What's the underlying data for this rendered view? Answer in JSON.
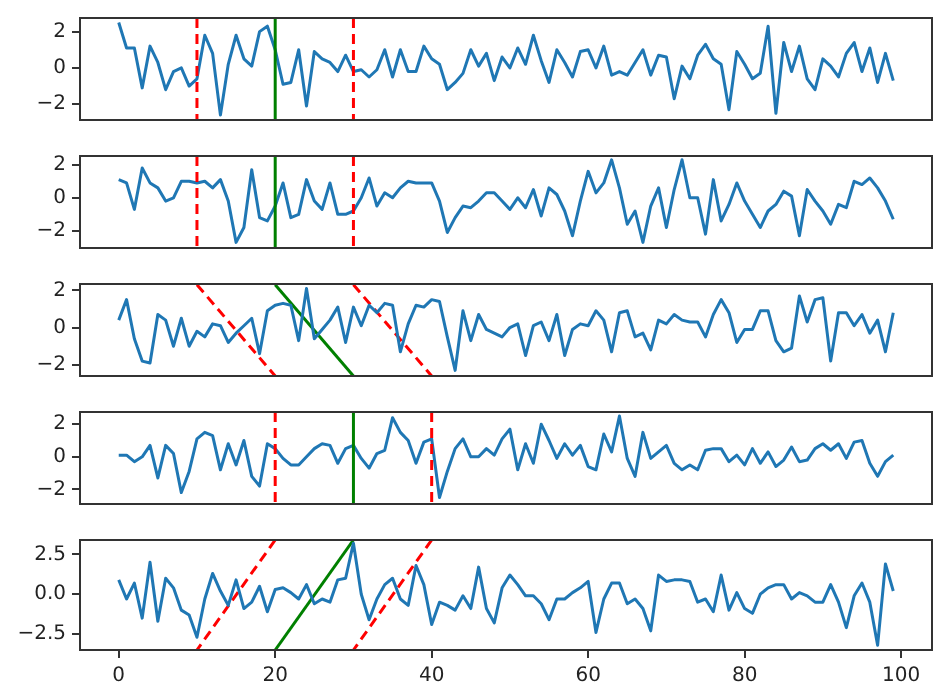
{
  "chart_data": [
    {
      "type": "line",
      "marker": "none",
      "tick_labels": "y",
      "xlim": [
        -4.95,
        103.95
      ],
      "ylim": [
        -2.87,
        2.75
      ],
      "yticks": [
        {
          "value": -2,
          "label": "−2"
        },
        0,
        2
      ],
      "x": [
        0,
        1,
        2,
        3,
        4,
        5,
        6,
        7,
        8,
        9,
        10,
        11,
        12,
        13,
        14,
        15,
        16,
        17,
        18,
        19,
        20,
        21,
        22,
        23,
        24,
        25,
        26,
        27,
        28,
        29,
        30,
        31,
        32,
        33,
        34,
        35,
        36,
        37,
        38,
        39,
        40,
        41,
        42,
        43,
        44,
        45,
        46,
        47,
        48,
        49,
        50,
        51,
        52,
        53,
        54,
        55,
        56,
        57,
        58,
        59,
        60,
        61,
        62,
        63,
        64,
        65,
        66,
        67,
        68,
        69,
        70,
        71,
        72,
        73,
        74,
        75,
        76,
        77,
        78,
        79,
        80,
        81,
        82,
        83,
        84,
        85,
        86,
        87,
        88,
        89,
        90,
        91,
        92,
        93,
        94,
        95,
        96,
        97,
        98,
        99
      ],
      "series": [
        {
          "color": "#1f77b4",
          "values": [
            2.5,
            1.1,
            1.1,
            -1.1,
            1.2,
            0.3,
            -1.2,
            -0.2,
            0,
            -1.0,
            -0.6,
            1.8,
            0.8,
            -2.6,
            0.2,
            1.8,
            0.5,
            0.1,
            2.0,
            2.3,
            1.0,
            -0.9,
            -0.8,
            1.0,
            -2.1,
            0.9,
            0.5,
            0.3,
            -0.2,
            0.7,
            -0.2,
            -0.1,
            -0.5,
            -0.1,
            1.0,
            -0.5,
            1.0,
            -0.2,
            -0.2,
            1.2,
            0.5,
            0.2,
            -1.2,
            -0.8,
            -0.3,
            1.0,
            0.1,
            0.8,
            -0.7,
            0.6,
            0,
            1.1,
            0.2,
            1.8,
            0.4,
            -0.8,
            1.0,
            0.3,
            -0.5,
            0.9,
            1.0,
            0,
            1.2,
            -0.4,
            -0.2,
            -0.4,
            0.3,
            1.0,
            -0.4,
            0.7,
            0.6,
            -1.7,
            0.1,
            -0.6,
            0.7,
            1.3,
            0.5,
            0.2,
            -2.3,
            0.9,
            0.2,
            -0.6,
            -0.3,
            2.3,
            -2.5,
            1.4,
            -0.2,
            1.2,
            -0.6,
            -1.2,
            0.5,
            0.1,
            -0.5,
            0.8,
            1.4,
            -0.2,
            1.1,
            -0.8,
            0.8,
            -0.7
          ]
        }
      ],
      "ref_lines": [
        {
          "axis": "x",
          "value": 10,
          "color": "#ff0000",
          "line_style": "dashed"
        },
        {
          "axis": "x",
          "value": 20,
          "color": "#008000",
          "line_style": "solid"
        },
        {
          "axis": "x",
          "value": 30,
          "color": "#ff0000",
          "line_style": "dashed"
        }
      ]
    },
    {
      "type": "line",
      "marker": "none",
      "tick_labels": "y",
      "xlim": [
        -4.95,
        103.95
      ],
      "ylim": [
        -3.04,
        2.53
      ],
      "yticks": [
        {
          "value": -2,
          "label": "−2"
        },
        0,
        2
      ],
      "x": [
        0,
        1,
        2,
        3,
        4,
        5,
        6,
        7,
        8,
        9,
        10,
        11,
        12,
        13,
        14,
        15,
        16,
        17,
        18,
        19,
        20,
        21,
        22,
        23,
        24,
        25,
        26,
        27,
        28,
        29,
        30,
        31,
        32,
        33,
        34,
        35,
        36,
        37,
        38,
        39,
        40,
        41,
        42,
        43,
        44,
        45,
        46,
        47,
        48,
        49,
        50,
        51,
        52,
        53,
        54,
        55,
        56,
        57,
        58,
        59,
        60,
        61,
        62,
        63,
        64,
        65,
        66,
        67,
        68,
        69,
        70,
        71,
        72,
        73,
        74,
        75,
        76,
        77,
        78,
        79,
        80,
        81,
        82,
        83,
        84,
        85,
        86,
        87,
        88,
        89,
        90,
        91,
        92,
        93,
        94,
        95,
        96,
        97,
        98,
        99
      ],
      "series": [
        {
          "color": "#1f77b4",
          "values": [
            1.1,
            0.9,
            -0.7,
            1.8,
            0.9,
            0.6,
            -0.2,
            0,
            1.0,
            1.0,
            0.9,
            1.0,
            0.6,
            1.1,
            -0.2,
            -2.7,
            -1.8,
            1.7,
            -1.2,
            -1.4,
            -0.5,
            0.9,
            -1.2,
            -1.0,
            1.1,
            -0.2,
            -0.7,
            0.9,
            -1.0,
            -1.0,
            -0.8,
            0,
            1.2,
            -0.5,
            0.3,
            0,
            0.6,
            1.0,
            0.9,
            0.9,
            0.9,
            -0.2,
            -2.1,
            -1.2,
            -0.5,
            -0.6,
            -0.2,
            0.3,
            0.3,
            -0.2,
            -0.7,
            0,
            -0.6,
            0.5,
            -1.1,
            0.6,
            0.2,
            -0.8,
            -2.3,
            -0.2,
            1.6,
            0.3,
            0.9,
            2.3,
            0.6,
            -1.6,
            -0.8,
            -2.7,
            -0.5,
            0.6,
            -1.8,
            0.5,
            2.3,
            0,
            0,
            -2.2,
            1.1,
            -1.4,
            -0.4,
            0.9,
            -0.2,
            -1.0,
            -1.8,
            -0.8,
            -0.4,
            0.4,
            0.1,
            -2.3,
            0.5,
            -0.2,
            -0.8,
            -1.6,
            -0.4,
            -0.6,
            1.0,
            0.8,
            1.2,
            0.6,
            -0.2,
            -1.3
          ]
        }
      ],
      "ref_lines": [
        {
          "axis": "x",
          "value": 10,
          "color": "#ff0000",
          "line_style": "dashed"
        },
        {
          "axis": "x",
          "value": 20,
          "color": "#008000",
          "line_style": "solid"
        },
        {
          "axis": "x",
          "value": 30,
          "color": "#ff0000",
          "line_style": "dashed"
        }
      ]
    },
    {
      "type": "line",
      "marker": "none",
      "tick_labels": "y",
      "xlim": [
        -4.95,
        103.95
      ],
      "ylim": [
        -2.6,
        2.34
      ],
      "yticks": [
        {
          "value": -2,
          "label": "−2"
        },
        0,
        2
      ],
      "x": [
        0,
        1,
        2,
        3,
        4,
        5,
        6,
        7,
        8,
        9,
        10,
        11,
        12,
        13,
        14,
        15,
        16,
        17,
        18,
        19,
        20,
        21,
        22,
        23,
        24,
        25,
        26,
        27,
        28,
        29,
        30,
        31,
        32,
        33,
        34,
        35,
        36,
        37,
        38,
        39,
        40,
        41,
        42,
        43,
        44,
        45,
        46,
        47,
        48,
        49,
        50,
        51,
        52,
        53,
        54,
        55,
        56,
        57,
        58,
        59,
        60,
        61,
        62,
        63,
        64,
        65,
        66,
        67,
        68,
        69,
        70,
        71,
        72,
        73,
        74,
        75,
        76,
        77,
        78,
        79,
        80,
        81,
        82,
        83,
        84,
        85,
        86,
        87,
        88,
        89,
        90,
        91,
        92,
        93,
        94,
        95,
        96,
        97,
        98,
        99
      ],
      "series": [
        {
          "color": "#1f77b4",
          "values": [
            0.4,
            1.5,
            -0.6,
            -1.8,
            -1.9,
            0.7,
            0.4,
            -1.0,
            0.5,
            -1.0,
            -0.2,
            -0.5,
            0.2,
            0.1,
            -0.8,
            -0.3,
            0.1,
            0.5,
            -1.4,
            0.9,
            1.2,
            1.3,
            1.2,
            -0.7,
            2.1,
            -0.6,
            -0.1,
            0.4,
            1.1,
            -0.8,
            1.1,
            0.1,
            1.2,
            0.8,
            1.3,
            1.2,
            -1.3,
            0.2,
            1.2,
            1.1,
            1.5,
            1.4,
            -0.5,
            -2.3,
            0.9,
            -0.7,
            0.7,
            -0.1,
            -0.3,
            -0.5,
            0,
            0.2,
            -1.5,
            0.1,
            0.3,
            -0.7,
            0.7,
            -1.5,
            -0.1,
            0.2,
            0.1,
            0.9,
            0.4,
            -1.3,
            0.8,
            0.9,
            -0.5,
            -0.3,
            -1.2,
            0.4,
            0.2,
            0.7,
            0.4,
            0.3,
            0.3,
            -0.5,
            0.7,
            1.5,
            0.8,
            -0.8,
            -0.1,
            -0.1,
            0.9,
            0.9,
            -0.7,
            -1.3,
            -1.1,
            1.7,
            0.3,
            1.5,
            1.6,
            -1.8,
            0.8,
            0.8,
            0.1,
            0.7,
            -0.3,
            0.4,
            -1.3,
            0.8
          ]
        },
        {
          "type": "line",
          "x": [
            10,
            20
          ],
          "values": [
            2.3,
            -2.6
          ],
          "color": "#ff0000",
          "line_style": "dashed"
        },
        {
          "type": "line",
          "x": [
            20,
            30
          ],
          "values": [
            2.3,
            -2.6
          ],
          "color": "#008000",
          "line_style": "solid"
        },
        {
          "type": "line",
          "x": [
            30,
            40
          ],
          "values": [
            2.3,
            -2.6
          ],
          "color": "#ff0000",
          "line_style": "dashed"
        }
      ]
    },
    {
      "type": "line",
      "marker": "none",
      "tick_labels": "y",
      "xlim": [
        -4.95,
        103.95
      ],
      "ylim": [
        -2.9,
        2.75
      ],
      "yticks": [
        {
          "value": -2,
          "label": "−2"
        },
        0,
        2
      ],
      "x": [
        0,
        1,
        2,
        3,
        4,
        5,
        6,
        7,
        8,
        9,
        10,
        11,
        12,
        13,
        14,
        15,
        16,
        17,
        18,
        19,
        20,
        21,
        22,
        23,
        24,
        25,
        26,
        27,
        28,
        29,
        30,
        31,
        32,
        33,
        34,
        35,
        36,
        37,
        38,
        39,
        40,
        41,
        42,
        43,
        44,
        45,
        46,
        47,
        48,
        49,
        50,
        51,
        52,
        53,
        54,
        55,
        56,
        57,
        58,
        59,
        60,
        61,
        62,
        63,
        64,
        65,
        66,
        67,
        68,
        69,
        70,
        71,
        72,
        73,
        74,
        75,
        76,
        77,
        78,
        79,
        80,
        81,
        82,
        83,
        84,
        85,
        86,
        87,
        88,
        89,
        90,
        91,
        92,
        93,
        94,
        95,
        96,
        97,
        98,
        99
      ],
      "series": [
        {
          "color": "#1f77b4",
          "values": [
            0.1,
            0.1,
            -0.3,
            0,
            0.7,
            -1.3,
            0.7,
            0.2,
            -2.2,
            -0.9,
            1.1,
            1.5,
            1.3,
            -0.8,
            0.8,
            -0.5,
            1.0,
            -1.2,
            -1.8,
            0.8,
            0.5,
            -0.1,
            -0.5,
            -0.5,
            0,
            0.5,
            0.8,
            0.7,
            -0.4,
            0.5,
            0.7,
            -0.1,
            -0.7,
            0.2,
            0.4,
            2.4,
            1.5,
            1.0,
            -0.4,
            0.9,
            1.1,
            -2.5,
            -0.9,
            0.5,
            1.1,
            0,
            0,
            0.5,
            0.1,
            1.1,
            1.7,
            -0.8,
            0.8,
            -0.4,
            2.0,
            1.0,
            -0.1,
            0.8,
            0.1,
            0.7,
            -0.6,
            -0.8,
            1.4,
            0.3,
            2.5,
            -0.1,
            -1.2,
            1.5,
            -0.1,
            0.3,
            0.7,
            -0.4,
            -0.8,
            -0.5,
            -0.8,
            0.4,
            0.5,
            0.5,
            -0.3,
            0.1,
            -0.5,
            0.5,
            -0.4,
            0.3,
            -0.6,
            -0.2,
            0.6,
            -0.3,
            -0.2,
            0.5,
            0.8,
            0.4,
            0.8,
            -0.1,
            0.9,
            1.0,
            -0.4,
            -1.2,
            -0.3,
            0.1
          ]
        }
      ],
      "ref_lines": [
        {
          "axis": "x",
          "value": 20,
          "color": "#ff0000",
          "line_style": "dashed"
        },
        {
          "axis": "x",
          "value": 30,
          "color": "#008000",
          "line_style": "solid"
        },
        {
          "axis": "x",
          "value": 40,
          "color": "#ff0000",
          "line_style": "dashed"
        }
      ]
    },
    {
      "type": "line",
      "marker": "none",
      "xlim": [
        -4.95,
        103.95
      ],
      "ylim": [
        -3.5,
        3.4
      ],
      "xticks": [
        0,
        20,
        40,
        60,
        80,
        100
      ],
      "yticks": [
        {
          "value": -2.5,
          "label": "−2.5"
        },
        {
          "value": 0,
          "label": "0.0"
        },
        2.5
      ],
      "x": [
        0,
        1,
        2,
        3,
        4,
        5,
        6,
        7,
        8,
        9,
        10,
        11,
        12,
        13,
        14,
        15,
        16,
        17,
        18,
        19,
        20,
        21,
        22,
        23,
        24,
        25,
        26,
        27,
        28,
        29,
        30,
        31,
        32,
        33,
        34,
        35,
        36,
        37,
        38,
        39,
        40,
        41,
        42,
        43,
        44,
        45,
        46,
        47,
        48,
        49,
        50,
        51,
        52,
        53,
        54,
        55,
        56,
        57,
        58,
        59,
        60,
        61,
        62,
        63,
        64,
        65,
        66,
        67,
        68,
        69,
        70,
        71,
        72,
        73,
        74,
        75,
        76,
        77,
        78,
        79,
        80,
        81,
        82,
        83,
        84,
        85,
        86,
        87,
        88,
        89,
        90,
        91,
        92,
        93,
        94,
        95,
        96,
        97,
        98,
        99
      ],
      "series": [
        {
          "color": "#1f77b4",
          "values": [
            0.9,
            -0.3,
            0.7,
            -1.5,
            2.0,
            -1.7,
            1.0,
            0.4,
            -1.0,
            -1.3,
            -2.7,
            -0.3,
            1.3,
            0.2,
            -0.7,
            0.9,
            -0.9,
            -0.5,
            0.5,
            -1.1,
            0.3,
            0.4,
            0.1,
            -0.3,
            0.6,
            -0.6,
            -0.3,
            -0.5,
            0.9,
            1.0,
            3.2,
            0,
            -1.6,
            -0.3,
            0.6,
            1.0,
            -0.3,
            -0.7,
            1.8,
            0.6,
            -1.9,
            -0.5,
            -0.7,
            -1.0,
            -0.1,
            -0.9,
            1.7,
            -0.9,
            -1.8,
            0.4,
            1.2,
            0.6,
            -0.1,
            -0.1,
            -0.6,
            -1.6,
            -0.3,
            -0.3,
            0.1,
            0.4,
            0.8,
            -2.4,
            -0.3,
            0.7,
            0.7,
            -0.6,
            -0.3,
            -0.9,
            -2.3,
            1.2,
            0.8,
            0.9,
            0.9,
            0.8,
            -0.5,
            -0.3,
            -1.1,
            1.2,
            -1.0,
            0.1,
            -0.9,
            -1.2,
            0,
            0.4,
            0.6,
            0.6,
            -0.3,
            0.1,
            -0.1,
            -0.5,
            -0.5,
            0.6,
            -0.5,
            -2.1,
            -0.1,
            0.7,
            -0.5,
            -3.2,
            1.9,
            0.2
          ]
        },
        {
          "type": "line",
          "x": [
            20,
            10
          ],
          "values": [
            3.4,
            -3.5
          ],
          "color": "#ff0000",
          "line_style": "dashed"
        },
        {
          "type": "line",
          "x": [
            30,
            20
          ],
          "values": [
            3.4,
            -3.5
          ],
          "color": "#008000",
          "line_style": "solid"
        },
        {
          "type": "line",
          "x": [
            40,
            30
          ],
          "values": [
            3.4,
            -3.5
          ],
          "color": "#ff0000",
          "line_style": "dashed"
        }
      ]
    }
  ]
}
